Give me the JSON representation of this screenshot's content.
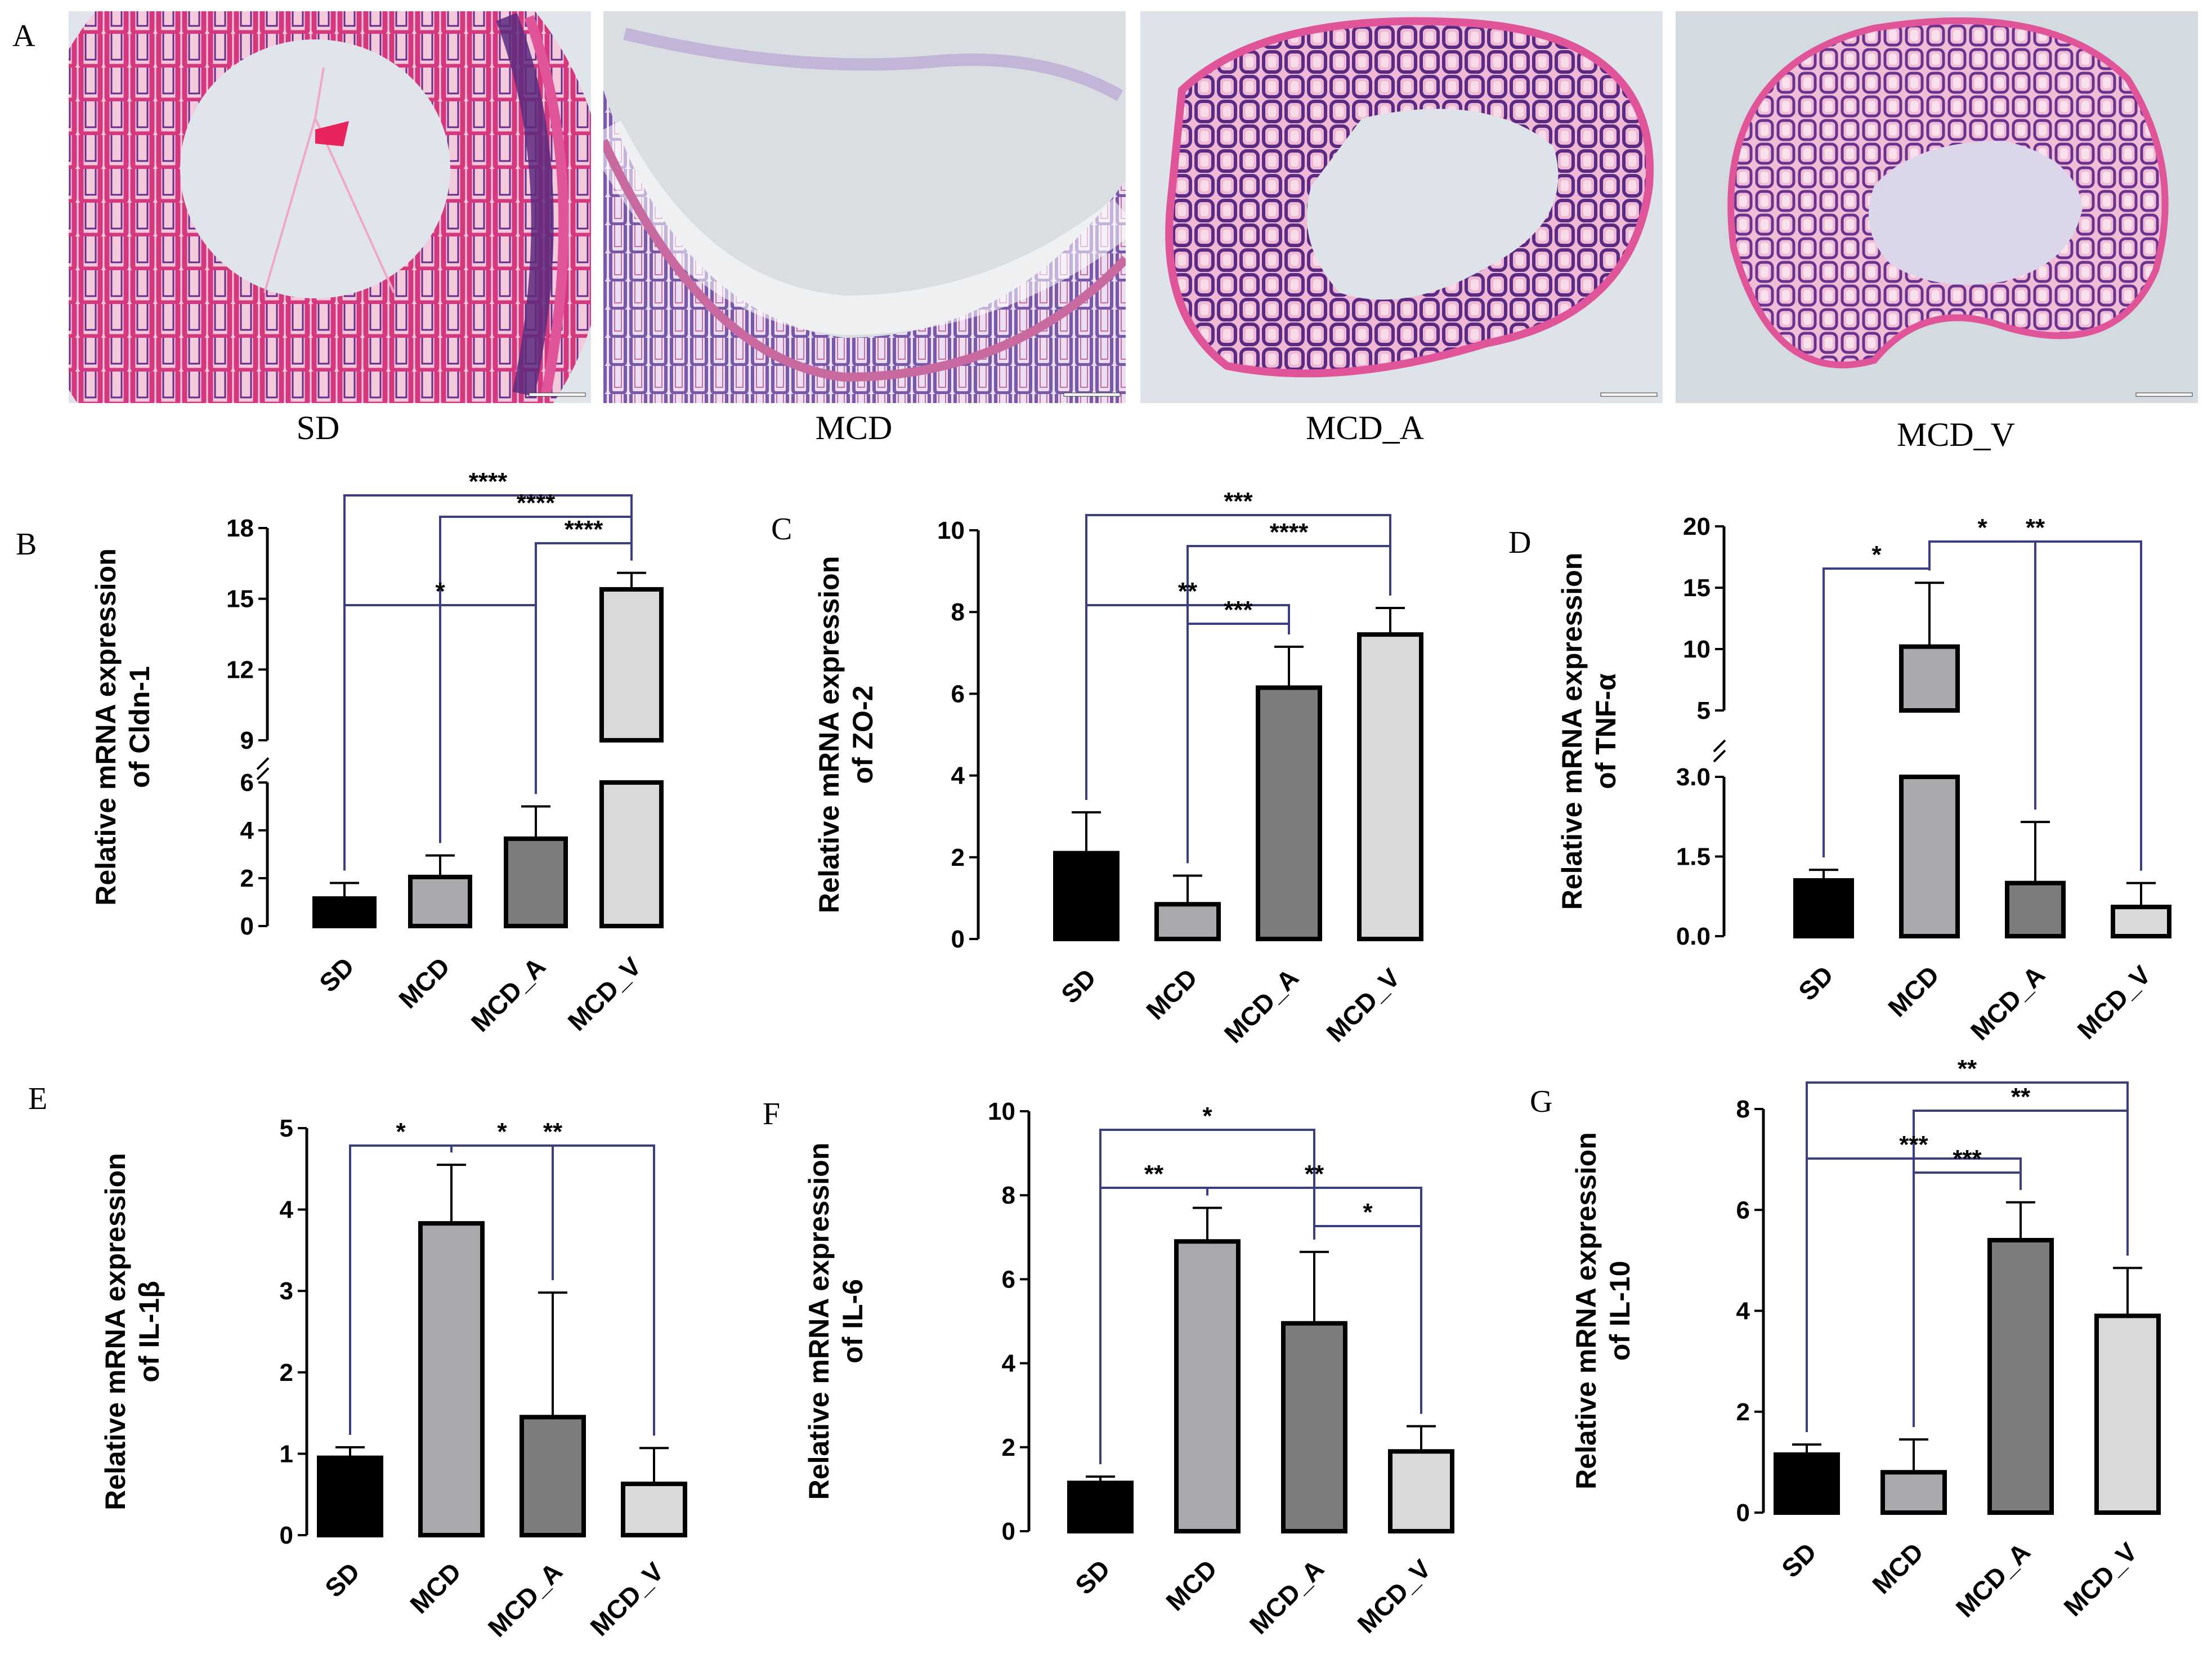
{
  "panel_a": {
    "letter": "A",
    "images": [
      {
        "label": "SD",
        "style": "sd"
      },
      {
        "label": "MCD",
        "style": "mcd"
      },
      {
        "label": "MCD_A",
        "style": "mcda"
      },
      {
        "label": "MCD_V",
        "style": "mcdv"
      }
    ]
  },
  "colors": {
    "bars": [
      "#000000",
      "#a8a8ad",
      "#7c7c7c",
      "#d9d9d9"
    ],
    "bracket": "#3b3f80",
    "he_pink": "#e0559a",
    "he_purple": "#5a2a7e",
    "slide_bg": "#d8dde2"
  },
  "chart_data": [
    {
      "panel": "B",
      "type": "bar",
      "categories": [
        "SD",
        "MCD",
        "MCD_A",
        "MCD_V"
      ],
      "values": [
        1.15,
        2.05,
        3.65,
        15.4
      ],
      "errors": [
        0.65,
        0.9,
        1.35,
        0.7
      ],
      "ylabel_line1": "Relative mRNA expression",
      "ylabel_line2": "of Cldn-1",
      "axis_break": true,
      "ylim": [
        0,
        18
      ],
      "lower_range": [
        0,
        6
      ],
      "upper_range": [
        9,
        18
      ],
      "lower_ticks": [
        "0",
        "2",
        "4",
        "6"
      ],
      "upper_ticks": [
        "9",
        "12",
        "15",
        "18"
      ],
      "brackets": [
        {
          "from": 0,
          "to": 3,
          "label": "****"
        },
        {
          "from": 1,
          "to": 3,
          "label": "****"
        },
        {
          "from": 2,
          "to": 3,
          "label": "****"
        },
        {
          "from": 0,
          "to": 2,
          "label": "*"
        }
      ]
    },
    {
      "panel": "C",
      "type": "bar",
      "categories": [
        "SD",
        "MCD",
        "MCD_A",
        "MCD_V"
      ],
      "values": [
        2.1,
        0.85,
        6.15,
        7.45
      ],
      "errors": [
        1.0,
        0.7,
        1.0,
        0.65
      ],
      "ylabel_line1": "Relative mRNA expression",
      "ylabel_line2": "of ZO-2",
      "ylim": [
        0,
        10
      ],
      "ticks": [
        "0",
        "2",
        "4",
        "6",
        "8",
        "10"
      ],
      "brackets": [
        {
          "from": 0,
          "to": 3,
          "label": "***"
        },
        {
          "from": 1,
          "to": 3,
          "label": "****"
        },
        {
          "from": 0,
          "to": 2,
          "label": "**"
        },
        {
          "from": 1,
          "to": 2,
          "label": "***"
        }
      ]
    },
    {
      "panel": "D",
      "type": "bar",
      "categories": [
        "SD",
        "MCD",
        "MCD_A",
        "MCD_V"
      ],
      "values": [
        1.05,
        10.2,
        1.0,
        0.55
      ],
      "errors": [
        0.2,
        5.2,
        1.15,
        0.45
      ],
      "ylabel_line1": "Relative mRNA expression",
      "ylabel_line2": "of TNF-α",
      "axis_break": true,
      "ylim": [
        0,
        20
      ],
      "lower_range": [
        0,
        3
      ],
      "upper_range": [
        5,
        20
      ],
      "lower_ticks": [
        "0.0",
        "1.5",
        "3.0"
      ],
      "upper_ticks": [
        "5",
        "10",
        "15",
        "20"
      ],
      "brackets": [
        {
          "from": 0,
          "to": 1,
          "label": "*"
        },
        {
          "from": 1,
          "to": 2,
          "label": "*"
        },
        {
          "from": 1,
          "to": 3,
          "label": "**"
        }
      ]
    },
    {
      "panel": "E",
      "type": "bar",
      "categories": [
        "SD",
        "MCD",
        "MCD_A",
        "MCD_V"
      ],
      "values": [
        0.95,
        3.83,
        1.45,
        0.63
      ],
      "errors": [
        0.13,
        0.72,
        1.53,
        0.44
      ],
      "ylabel_line1": "Relative mRNA expression",
      "ylabel_line2": "of IL-1β",
      "ylim": [
        0,
        5
      ],
      "ticks": [
        "0",
        "1",
        "2",
        "3",
        "4",
        "5"
      ],
      "brackets": [
        {
          "from": 0,
          "to": 1,
          "label": "*"
        },
        {
          "from": 1,
          "to": 2,
          "label": "*"
        },
        {
          "from": 1,
          "to": 3,
          "label": "**"
        }
      ]
    },
    {
      "panel": "F",
      "type": "bar",
      "categories": [
        "SD",
        "MCD",
        "MCD_A",
        "MCD_V"
      ],
      "values": [
        1.15,
        6.9,
        4.95,
        1.9
      ],
      "errors": [
        0.15,
        0.8,
        1.7,
        0.6
      ],
      "ylabel_line1": "Relative mRNA expression",
      "ylabel_line2": "of IL-6",
      "ylim": [
        0,
        10
      ],
      "ticks": [
        "0",
        "2",
        "4",
        "6",
        "8",
        "10"
      ],
      "brackets": [
        {
          "from": 0,
          "to": 2,
          "label": "*"
        },
        {
          "from": 0,
          "to": 1,
          "label": "**"
        },
        {
          "from": 1,
          "to": 3,
          "label": "**"
        },
        {
          "from": 2,
          "to": 3,
          "label": "*"
        }
      ]
    },
    {
      "panel": "G",
      "type": "bar",
      "categories": [
        "SD",
        "MCD",
        "MCD_A",
        "MCD_V"
      ],
      "values": [
        1.15,
        0.8,
        5.4,
        3.9
      ],
      "errors": [
        0.2,
        0.65,
        0.75,
        0.95
      ],
      "ylabel_line1": "Relative mRNA expression",
      "ylabel_line2": "of IL-10",
      "ylim": [
        0,
        8
      ],
      "ticks": [
        "0",
        "2",
        "4",
        "6",
        "8"
      ],
      "brackets": [
        {
          "from": 0,
          "to": 3,
          "label": "**"
        },
        {
          "from": 1,
          "to": 3,
          "label": "**"
        },
        {
          "from": 0,
          "to": 2,
          "label": "***"
        },
        {
          "from": 1,
          "to": 2,
          "label": "***"
        }
      ]
    }
  ]
}
